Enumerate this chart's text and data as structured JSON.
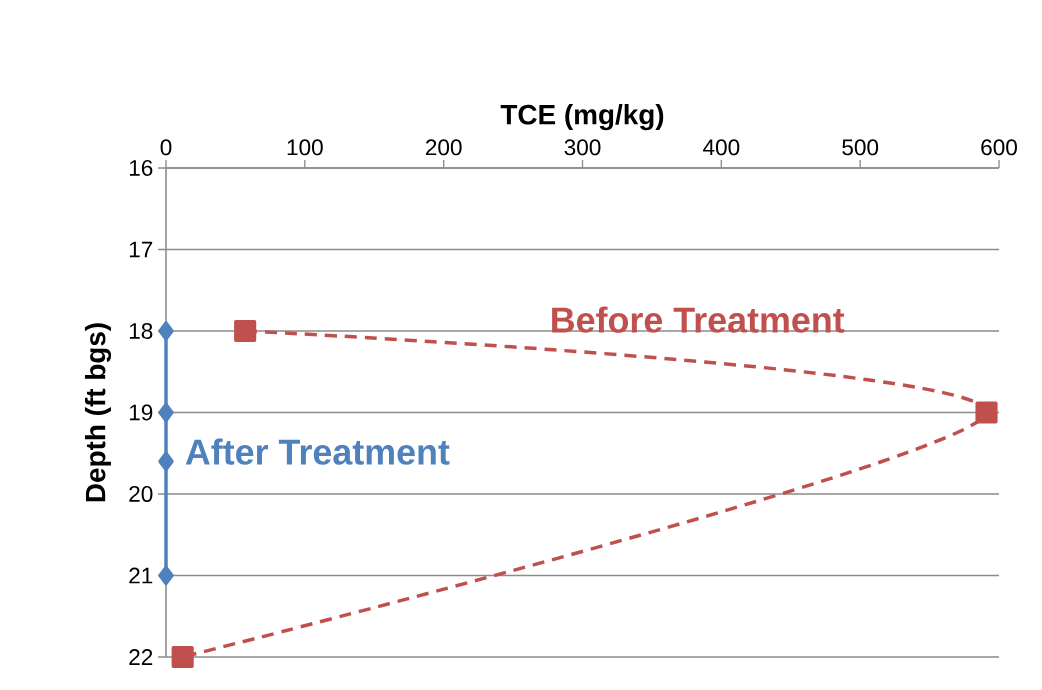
{
  "chart_data": {
    "type": "line",
    "xlabel": "TCE (mg/kg)",
    "ylabel": "Depth (ft bgs)",
    "xlim": [
      0,
      600
    ],
    "xticks": [
      0,
      100,
      200,
      300,
      400,
      500,
      600
    ],
    "ylim": [
      22,
      16
    ],
    "yticks": [
      16,
      17,
      18,
      19,
      20,
      21,
      22
    ],
    "grid": "y",
    "legend": false,
    "series": [
      {
        "name": "Before Treatment",
        "color": "#c0504d",
        "x": [
          57,
          591,
          12
        ],
        "values": [
          18,
          19,
          22
        ],
        "marker": "square",
        "line_style": "dashed"
      },
      {
        "name": "After Treatment",
        "color": "#4f81bd",
        "x": [
          0,
          0,
          0,
          0
        ],
        "values": [
          18,
          19,
          19.6,
          21
        ],
        "marker": "diamond",
        "line_style": "solid"
      }
    ]
  }
}
